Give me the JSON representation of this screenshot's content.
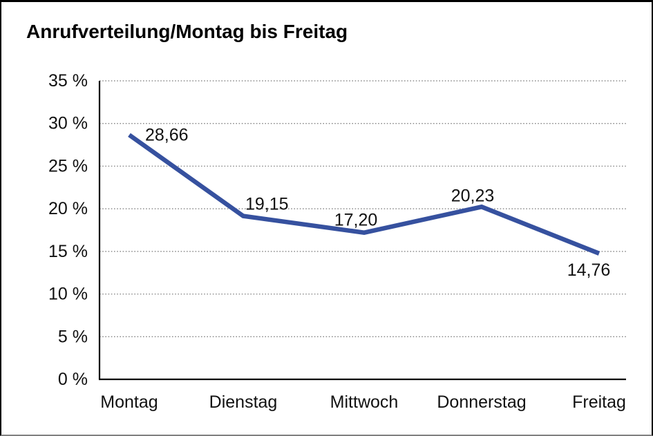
{
  "page": {
    "background": "#ffffff",
    "frame_border_color": "#000000",
    "frame_bottom_border_color": "#808080"
  },
  "chart_data": {
    "type": "line",
    "title": "Anrufverteilung/Montag bis Freitag",
    "categories": [
      "Montag",
      "Dienstag",
      "Mittwoch",
      "Donnerstag",
      "Freitag"
    ],
    "series": [
      {
        "name": "Anrufverteilung",
        "values": [
          28.66,
          19.15,
          17.2,
          20.23,
          14.76
        ],
        "value_labels": [
          "28,66",
          "19,15",
          "17,20",
          "20,23",
          "14,76"
        ]
      }
    ],
    "xlabel": "",
    "ylabel": "",
    "ylim": [
      0,
      35
    ],
    "y_ticks": [
      0,
      5,
      10,
      15,
      20,
      25,
      30,
      35
    ],
    "y_tick_labels": [
      "0 %",
      "5 %",
      "10 %",
      "15 %",
      "20 %",
      "25 %",
      "30 %",
      "35 %"
    ],
    "grid": "horizontal-dotted",
    "legend": "none",
    "line_color": "#36519F",
    "grid_color": "#777777",
    "axis_color": "#000000",
    "text_color": "#111111"
  }
}
